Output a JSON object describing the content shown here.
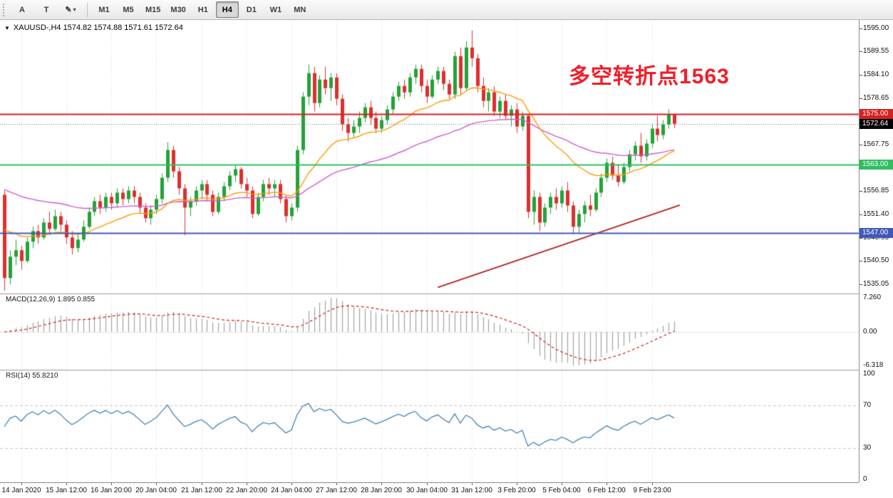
{
  "toolbar": {
    "tool_buttons": [
      {
        "name": "arrow-tool",
        "label": "A"
      },
      {
        "name": "text-tool",
        "label": "T"
      },
      {
        "name": "draw-tool",
        "label": "✎",
        "dropdown": "▾"
      }
    ],
    "timeframes": [
      "M1",
      "M5",
      "M15",
      "M30",
      "H1",
      "H4",
      "D1",
      "W1",
      "MN"
    ],
    "active_timeframe": "H4"
  },
  "price_chart": {
    "collapse_arrow": "▼",
    "title": "XAUUSD-,H4 1574.82 1574.88 1571.61 1572.64",
    "annotation": {
      "text": "多空转折点1563",
      "color": "#f01e28"
    }
  },
  "macd_panel": {
    "label": "MACD(12,26,9) 1.895 0.855",
    "axis_ticks": [
      "7.260",
      "0.00",
      "-6.318"
    ]
  },
  "rsi_panel": {
    "label": "RSI(14) 55.8210",
    "axis_ticks": [
      100,
      70,
      30,
      0
    ]
  },
  "price_axis": {
    "ticks": [
      1595.0,
      1589.55,
      1584.1,
      1578.65,
      1573.2,
      1567.75,
      1562.3,
      1556.85,
      1551.4,
      1545.95,
      1540.5,
      1535.05
    ],
    "level_badges": [
      {
        "label": "1575.00",
        "value": 1575.0,
        "color": "#d42121"
      },
      {
        "label": "1563.00",
        "value": 1563.0,
        "color": "#2fbf60"
      },
      {
        "label": "1547.00",
        "value": 1547.0,
        "color": "#4059b8"
      }
    ],
    "current_badge": {
      "label": "1572.64",
      "value": 1572.64,
      "color": "#000000"
    }
  },
  "time_axis": {
    "labels": [
      "14 Jan 2020",
      "15 Jan 12:00",
      "16 Jan 20:00",
      "20 Jan 04:00",
      "21 Jan 12:00",
      "22 Jan 20:00",
      "24 Jan 04:00",
      "27 Jan 12:00",
      "28 Jan 20:00",
      "30 Jan 04:00",
      "31 Jan 12:00",
      "3 Feb 20:00",
      "5 Feb 04:00",
      "6 Feb 12:00",
      "9 Feb 23:00"
    ],
    "first_bar": 3,
    "step": 8
  },
  "chart_data": {
    "type": "candlestick",
    "symbol": "XAUUSD-",
    "timeframe": "H4",
    "title": "XAUUSD-,H4 1574.82 1574.88 1571.61 1572.64",
    "ylim": [
      1533.2,
      1596.3
    ],
    "current_price": 1572.64,
    "ohlc_format": [
      "open",
      "high",
      "low",
      "close"
    ],
    "ohlc": [
      [
        1556.0,
        1557.0,
        1533.5,
        1536.5
      ],
      [
        1536.5,
        1543.0,
        1535.0,
        1541.5
      ],
      [
        1541.5,
        1545.5,
        1539.5,
        1543.0
      ],
      [
        1543.0,
        1544.0,
        1538.5,
        1540.5
      ],
      [
        1540.5,
        1546.0,
        1540.0,
        1545.0
      ],
      [
        1545.0,
        1548.5,
        1543.5,
        1547.5
      ],
      [
        1547.5,
        1549.0,
        1544.5,
        1546.0
      ],
      [
        1546.0,
        1550.5,
        1545.5,
        1549.5
      ],
      [
        1549.5,
        1552.0,
        1547.0,
        1548.0
      ],
      [
        1548.0,
        1552.5,
        1547.5,
        1551.0
      ],
      [
        1551.0,
        1552.0,
        1547.5,
        1549.0
      ],
      [
        1549.0,
        1550.0,
        1544.5,
        1546.0
      ],
      [
        1546.0,
        1547.5,
        1542.0,
        1543.5
      ],
      [
        1543.5,
        1547.0,
        1542.5,
        1545.5
      ],
      [
        1545.5,
        1550.0,
        1545.0,
        1548.5
      ],
      [
        1548.5,
        1553.0,
        1548.0,
        1552.0
      ],
      [
        1552.0,
        1555.5,
        1551.0,
        1554.5
      ],
      [
        1554.5,
        1556.0,
        1551.5,
        1553.0
      ],
      [
        1553.0,
        1556.5,
        1552.0,
        1555.5
      ],
      [
        1555.5,
        1556.5,
        1552.5,
        1554.0
      ],
      [
        1554.0,
        1557.5,
        1553.0,
        1556.5
      ],
      [
        1556.5,
        1557.5,
        1553.5,
        1555.0
      ],
      [
        1555.0,
        1558.0,
        1554.0,
        1557.0
      ],
      [
        1557.0,
        1558.0,
        1554.0,
        1555.5
      ],
      [
        1555.5,
        1556.5,
        1551.5,
        1553.0
      ],
      [
        1553.0,
        1554.0,
        1549.5,
        1550.5
      ],
      [
        1550.5,
        1553.5,
        1549.0,
        1552.5
      ],
      [
        1552.5,
        1556.0,
        1551.5,
        1555.0
      ],
      [
        1555.0,
        1561.0,
        1554.0,
        1560.0
      ],
      [
        1560.0,
        1568.3,
        1559.0,
        1566.5
      ],
      [
        1566.5,
        1567.5,
        1560.0,
        1561.5
      ],
      [
        1561.5,
        1562.5,
        1556.0,
        1557.5
      ],
      [
        1557.5,
        1558.5,
        1546.5,
        1553.0
      ],
      [
        1553.0,
        1555.5,
        1551.0,
        1554.5
      ],
      [
        1554.5,
        1558.0,
        1553.5,
        1557.0
      ],
      [
        1557.0,
        1559.5,
        1555.0,
        1558.5
      ],
      [
        1558.5,
        1559.5,
        1554.5,
        1556.0
      ],
      [
        1556.0,
        1557.0,
        1551.0,
        1552.0
      ],
      [
        1552.0,
        1556.5,
        1551.5,
        1555.5
      ],
      [
        1555.5,
        1559.0,
        1554.5,
        1558.0
      ],
      [
        1558.0,
        1561.5,
        1557.0,
        1560.5
      ],
      [
        1560.5,
        1563.0,
        1559.0,
        1562.0
      ],
      [
        1562.0,
        1562.5,
        1557.5,
        1558.5
      ],
      [
        1558.5,
        1560.0,
        1555.5,
        1557.0
      ],
      [
        1557.0,
        1558.0,
        1550.5,
        1551.5
      ],
      [
        1551.5,
        1556.5,
        1551.0,
        1555.5
      ],
      [
        1555.5,
        1559.5,
        1554.5,
        1558.5
      ],
      [
        1558.5,
        1560.0,
        1556.0,
        1557.5
      ],
      [
        1557.5,
        1559.5,
        1555.5,
        1558.5
      ],
      [
        1558.5,
        1559.5,
        1554.0,
        1555.0
      ],
      [
        1555.0,
        1556.0,
        1549.5,
        1551.0
      ],
      [
        1551.0,
        1554.0,
        1550.0,
        1553.0
      ],
      [
        1553.0,
        1567.5,
        1552.0,
        1566.5
      ],
      [
        1566.5,
        1580.0,
        1565.5,
        1579.0
      ],
      [
        1579.0,
        1586.5,
        1577.0,
        1584.5
      ],
      [
        1584.5,
        1586.0,
        1575.5,
        1577.5
      ],
      [
        1577.5,
        1584.0,
        1576.5,
        1583.0
      ],
      [
        1583.0,
        1586.0,
        1579.5,
        1581.0
      ],
      [
        1581.0,
        1584.5,
        1578.0,
        1583.5
      ],
      [
        1583.5,
        1584.5,
        1577.0,
        1578.5
      ],
      [
        1578.5,
        1579.5,
        1571.0,
        1572.5
      ],
      [
        1572.5,
        1574.0,
        1568.5,
        1570.5
      ],
      [
        1570.5,
        1573.5,
        1569.5,
        1572.0
      ],
      [
        1572.0,
        1575.5,
        1570.5,
        1574.0
      ],
      [
        1574.0,
        1577.5,
        1573.0,
        1576.5
      ],
      [
        1576.5,
        1578.0,
        1572.5,
        1574.0
      ],
      [
        1574.0,
        1575.5,
        1570.5,
        1571.5
      ],
      [
        1571.5,
        1574.5,
        1570.5,
        1573.5
      ],
      [
        1573.5,
        1577.0,
        1572.5,
        1576.0
      ],
      [
        1576.0,
        1580.0,
        1575.0,
        1579.0
      ],
      [
        1579.0,
        1582.5,
        1578.0,
        1581.5
      ],
      [
        1581.5,
        1583.0,
        1578.5,
        1580.0
      ],
      [
        1580.0,
        1584.5,
        1579.0,
        1583.5
      ],
      [
        1583.5,
        1586.5,
        1582.0,
        1585.5
      ],
      [
        1585.5,
        1586.5,
        1580.0,
        1581.5
      ],
      [
        1581.5,
        1583.0,
        1577.5,
        1579.0
      ],
      [
        1579.0,
        1584.0,
        1578.5,
        1583.0
      ],
      [
        1583.0,
        1586.0,
        1582.0,
        1585.0
      ],
      [
        1585.0,
        1586.0,
        1580.5,
        1582.0
      ],
      [
        1582.0,
        1583.0,
        1578.5,
        1579.5
      ],
      [
        1579.5,
        1589.5,
        1578.5,
        1588.5
      ],
      [
        1588.5,
        1590.5,
        1579.5,
        1581.0
      ],
      [
        1581.0,
        1592.0,
        1580.5,
        1590.5
      ],
      [
        1590.5,
        1594.5,
        1586.0,
        1588.0
      ],
      [
        1588.0,
        1589.0,
        1580.0,
        1581.5
      ],
      [
        1581.5,
        1583.5,
        1576.5,
        1578.0
      ],
      [
        1578.0,
        1581.0,
        1575.5,
        1580.0
      ],
      [
        1580.0,
        1581.5,
        1574.5,
        1575.5
      ],
      [
        1575.5,
        1579.0,
        1574.0,
        1578.0
      ],
      [
        1578.0,
        1579.5,
        1573.5,
        1574.5
      ],
      [
        1574.5,
        1577.0,
        1572.0,
        1576.0
      ],
      [
        1576.0,
        1577.5,
        1570.5,
        1572.0
      ],
      [
        1572.0,
        1575.5,
        1571.0,
        1574.5
      ],
      [
        1574.5,
        1575.0,
        1550.5,
        1552.0
      ],
      [
        1552.0,
        1557.0,
        1549.0,
        1555.5
      ],
      [
        1555.5,
        1556.5,
        1547.5,
        1549.5
      ],
      [
        1549.5,
        1554.0,
        1548.5,
        1553.0
      ],
      [
        1553.0,
        1556.5,
        1551.5,
        1555.5
      ],
      [
        1555.5,
        1557.5,
        1552.5,
        1554.0
      ],
      [
        1554.0,
        1558.0,
        1553.0,
        1557.0
      ],
      [
        1557.0,
        1559.0,
        1552.0,
        1553.5
      ],
      [
        1553.5,
        1554.5,
        1546.8,
        1548.5
      ],
      [
        1548.5,
        1552.5,
        1547.0,
        1551.5
      ],
      [
        1551.5,
        1554.5,
        1549.5,
        1553.5
      ],
      [
        1553.5,
        1556.0,
        1551.0,
        1552.5
      ],
      [
        1552.5,
        1557.5,
        1552.0,
        1556.5
      ],
      [
        1556.5,
        1561.0,
        1555.5,
        1560.0
      ],
      [
        1560.0,
        1564.5,
        1559.0,
        1563.5
      ],
      [
        1563.5,
        1565.0,
        1559.5,
        1560.5
      ],
      [
        1560.5,
        1563.0,
        1558.0,
        1559.0
      ],
      [
        1559.0,
        1563.5,
        1558.5,
        1562.5
      ],
      [
        1562.5,
        1566.5,
        1561.5,
        1565.5
      ],
      [
        1565.5,
        1568.5,
        1564.0,
        1567.5
      ],
      [
        1567.5,
        1570.5,
        1563.5,
        1565.0
      ],
      [
        1565.0,
        1569.0,
        1564.0,
        1568.0
      ],
      [
        1568.0,
        1572.5,
        1567.0,
        1571.5
      ],
      [
        1571.5,
        1574.5,
        1568.5,
        1570.0
      ],
      [
        1570.0,
        1573.5,
        1569.0,
        1572.5
      ],
      [
        1572.5,
        1576.0,
        1571.5,
        1574.82
      ],
      [
        1574.82,
        1574.88,
        1571.61,
        1572.64
      ]
    ],
    "style": {
      "up_color": "#23a338",
      "down_color": "#dd2f2f"
    },
    "overlays": {
      "ma_fast": {
        "period": 21,
        "seed": 1549,
        "color": "#ff9a00"
      },
      "ma_slow": {
        "period": 55,
        "seed": 1558,
        "color": "#cf5ccf"
      },
      "hlines": [
        {
          "value": 1575.0,
          "color": "#d42121",
          "width": 2
        },
        {
          "value": 1563.0,
          "color": "#2fbf60",
          "width": 2
        },
        {
          "value": 1547.0,
          "color": "#4059b8",
          "width": 2
        }
      ],
      "trendline": {
        "from_bar": 77,
        "from_price": 1534.3,
        "to_bar": 120,
        "to_price": 1553.6,
        "color": "#b22222"
      }
    },
    "indicators": [
      {
        "type": "MACD",
        "params": [
          12,
          26,
          9
        ],
        "values": [
          1.895,
          0.855
        ],
        "histogram_color": "#a0a0a0",
        "signal_color": "#cc2222"
      },
      {
        "type": "RSI",
        "period": 14,
        "value": 55.821,
        "levels": [
          70,
          30
        ],
        "line_color": "#4682b4"
      }
    ]
  }
}
